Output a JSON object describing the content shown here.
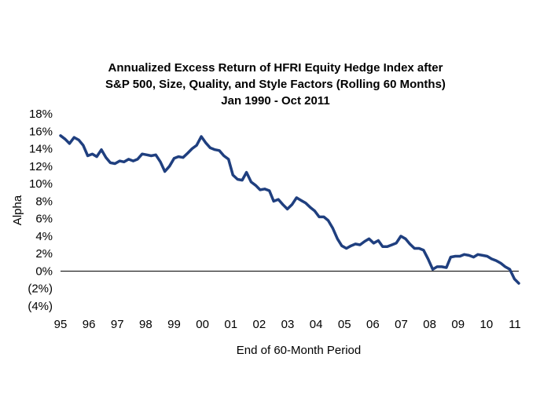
{
  "chart_data": {
    "type": "line",
    "title_lines": [
      "Annualized Excess Return of HFRI Equity Hedge Index after",
      "S&P 500, Size, Quality, and Style Factors (Rolling 60 Months)",
      "Jan 1990 - Oct 2011"
    ],
    "xlabel": "End of 60-Month Period",
    "ylabel": "Alpha",
    "x_tick_labels": [
      "95",
      "96",
      "97",
      "98",
      "99",
      "00",
      "01",
      "02",
      "03",
      "04",
      "05",
      "06",
      "07",
      "08",
      "09",
      "10",
      "11"
    ],
    "y_tick_labels": [
      "18%",
      "16%",
      "14%",
      "12%",
      "10%",
      "8%",
      "6%",
      "4%",
      "2%",
      "0%",
      "(2%)",
      "(4%)"
    ],
    "ylim": [
      -4,
      18
    ],
    "xlim": [
      1995.0,
      2011.83
    ],
    "grid": false,
    "legend": "none",
    "series_color": "#1F3F7F",
    "zero_line": true,
    "series": [
      {
        "x": [
          1995.0,
          1995.17,
          1995.33,
          1995.5,
          1995.67,
          1995.83,
          1996.0,
          1996.17,
          1996.33,
          1996.5,
          1996.67,
          1996.83,
          1997.0,
          1997.17,
          1997.33,
          1997.5,
          1997.67,
          1997.83,
          1998.0,
          1998.17,
          1998.33,
          1998.5,
          1998.67,
          1998.83,
          1999.0,
          1999.17,
          1999.33,
          1999.5,
          1999.67,
          1999.83,
          2000.0,
          2000.17,
          2000.33,
          2000.5,
          2000.67,
          2000.83,
          2001.0,
          2001.17,
          2001.33,
          2001.5,
          2001.67,
          2001.83,
          2002.0,
          2002.17,
          2002.33,
          2002.5,
          2002.67,
          2002.83,
          2003.0,
          2003.17,
          2003.33,
          2003.5,
          2003.67,
          2003.83,
          2004.0,
          2004.17,
          2004.33,
          2004.5,
          2004.67,
          2004.83,
          2005.0,
          2005.17,
          2005.33,
          2005.5,
          2005.67,
          2005.83,
          2006.0,
          2006.17,
          2006.33,
          2006.5,
          2006.67,
          2006.83,
          2007.0,
          2007.17,
          2007.33,
          2007.5,
          2007.67,
          2007.83,
          2008.0,
          2008.17,
          2008.33,
          2008.5,
          2008.67,
          2008.83,
          2009.0,
          2009.17,
          2009.33,
          2009.5,
          2009.67,
          2009.83,
          2010.0,
          2010.17,
          2010.33,
          2010.5,
          2010.67,
          2010.83,
          2011.0,
          2011.17,
          2011.33,
          2011.5,
          2011.67,
          2011.83
        ],
        "values": [
          15.5,
          15.1,
          14.6,
          15.3,
          15.0,
          14.4,
          13.2,
          13.4,
          13.1,
          13.9,
          13.0,
          12.4,
          12.3,
          12.6,
          12.5,
          12.8,
          12.6,
          12.8,
          13.4,
          13.3,
          13.2,
          13.3,
          12.5,
          11.4,
          12.0,
          12.9,
          13.1,
          13.0,
          13.5,
          14.0,
          14.4,
          15.4,
          14.7,
          14.1,
          13.9,
          13.8,
          13.2,
          12.8,
          11.0,
          10.5,
          10.4,
          11.3,
          10.2,
          9.8,
          9.3,
          9.4,
          9.2,
          8.0,
          8.2,
          7.6,
          7.1,
          7.6,
          8.4,
          8.1,
          7.8,
          7.3,
          6.9,
          6.2,
          6.2,
          5.8,
          4.9,
          3.7,
          2.9,
          2.6,
          2.9,
          3.1,
          3.0,
          3.4,
          3.7,
          3.2,
          3.5,
          2.8,
          2.8,
          3.0,
          3.2,
          4.0,
          3.7,
          3.1,
          2.6,
          2.6,
          2.4,
          1.4,
          0.2,
          0.5,
          0.5,
          0.4,
          1.6,
          1.7,
          1.7,
          1.9,
          1.8,
          1.6,
          1.9,
          1.8,
          1.7,
          1.4,
          1.2,
          0.9,
          0.5,
          0.2,
          -0.9,
          -1.4
        ]
      }
    ]
  }
}
